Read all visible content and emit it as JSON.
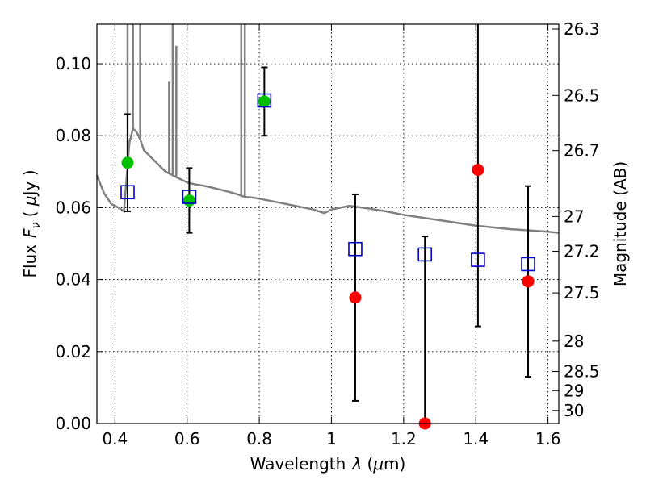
{
  "chart_data": {
    "type": "scatter",
    "xlabel": "Wavelength",
    "xlabel_symbol": "λ",
    "xlabel_unit_open": " (",
    "xlabel_unit_mu": "μ",
    "xlabel_unit_rest": "m)",
    "ylabel_prefix": "Flux",
    "ylabel_symbol": "F",
    "ylabel_sub": "ν",
    "ylabel_unit_open": "  (  ",
    "ylabel_unit_mu": "μ",
    "ylabel_unit_rest": "Jy  )",
    "y2label": "Magnitude (AB)",
    "xlim": [
      0.35,
      1.63
    ],
    "ylim": [
      0.0,
      0.111
    ],
    "x_ticks": [
      0.4,
      0.6,
      0.8,
      1.0,
      1.2,
      1.4,
      1.6
    ],
    "x_tick_labels": [
      "0.4",
      "0.6",
      "0.8",
      "1",
      "1.2",
      "1.4",
      "1.6"
    ],
    "y_ticks": [
      0.0,
      0.02,
      0.04,
      0.06,
      0.08,
      0.1
    ],
    "y_tick_labels": [
      "0.00",
      "0.02",
      "0.04",
      "0.06",
      "0.08",
      "0.10"
    ],
    "y2_ticks": [
      26.3,
      26.5,
      26.7,
      27,
      27.2,
      27.5,
      28,
      28.5,
      29,
      30
    ],
    "y2_tick_labels": [
      "26.3",
      "26.5",
      "26.7",
      "27",
      "27.2",
      "27.5",
      "28",
      "28.5",
      "29",
      "30"
    ],
    "grid": true,
    "colors": {
      "model": "#808080",
      "observed_green": "#00c000",
      "observed_red": "#ff0000",
      "model_photometry": "#0000cc",
      "errorbar": "#000000"
    },
    "series": [
      {
        "kind": "errorbar",
        "points": [
          {
            "x": 0.435,
            "y": 0.0725,
            "yerr": 0.0135,
            "color": "green"
          },
          {
            "x": 0.606,
            "y": 0.062,
            "yerr": 0.009,
            "color": "green"
          },
          {
            "x": 0.814,
            "y": 0.0895,
            "yerr": 0.0095,
            "color": "green"
          },
          {
            "x": 1.066,
            "y": 0.035,
            "yerr": 0.0287,
            "color": "red"
          },
          {
            "x": 1.259,
            "y": 0.0,
            "yerr": 0.052,
            "color": "red"
          },
          {
            "x": 1.406,
            "y": 0.0705,
            "yerr": 0.0435,
            "color": "red"
          },
          {
            "x": 1.545,
            "y": 0.0395,
            "yerr": 0.0265,
            "color": "red"
          }
        ]
      },
      {
        "kind": "model_photometry",
        "marker": "square",
        "x": [
          0.435,
          0.606,
          0.814,
          1.066,
          1.259,
          1.406,
          1.545
        ],
        "y": [
          0.0643,
          0.063,
          0.0898,
          0.0485,
          0.047,
          0.0455,
          0.0443
        ]
      },
      {
        "kind": "model_spectrum",
        "x": [
          0.35,
          0.37,
          0.39,
          0.41,
          0.425,
          0.44,
          0.45,
          0.46,
          0.47,
          0.48,
          0.5,
          0.52,
          0.54,
          0.56,
          0.58,
          0.6,
          0.62,
          0.64,
          0.66,
          0.68,
          0.7,
          0.72,
          0.74,
          0.76,
          0.78,
          0.8,
          0.85,
          0.9,
          0.95,
          0.98,
          1.0,
          1.05,
          1.1,
          1.15,
          1.2,
          1.3,
          1.4,
          1.5,
          1.6,
          1.63
        ],
        "y": [
          0.069,
          0.064,
          0.061,
          0.06,
          0.059,
          0.078,
          0.082,
          0.081,
          0.079,
          0.076,
          0.074,
          0.072,
          0.07,
          0.069,
          0.068,
          0.067,
          0.0665,
          0.0662,
          0.0658,
          0.0653,
          0.0648,
          0.0643,
          0.0637,
          0.063,
          0.0628,
          0.0625,
          0.0615,
          0.0605,
          0.0595,
          0.0585,
          0.0595,
          0.0605,
          0.0598,
          0.059,
          0.058,
          0.0565,
          0.055,
          0.054,
          0.0533,
          0.053
        ],
        "emission_lines": [
          {
            "x": 0.435,
            "peak": 0.111
          },
          {
            "x": 0.45,
            "peak": 0.111
          },
          {
            "x": 0.47,
            "peak": 0.111
          },
          {
            "x": 0.55,
            "peak": 0.095
          },
          {
            "x": 0.56,
            "peak": 0.111
          },
          {
            "x": 0.57,
            "peak": 0.105
          },
          {
            "x": 0.75,
            "peak": 0.111
          },
          {
            "x": 0.76,
            "peak": 0.111
          }
        ]
      }
    ]
  }
}
